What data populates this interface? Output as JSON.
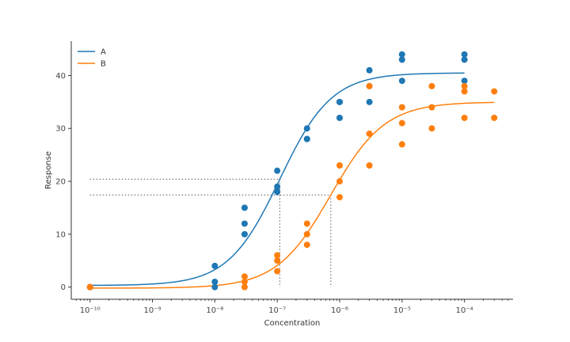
{
  "chart_data": {
    "type": "scatter",
    "title": "",
    "xlabel": "Concentration",
    "ylabel": "Response",
    "xscale": "log",
    "xlim": [
      5e-11,
      0.0006
    ],
    "ylim": [
      -2.3,
      46.5
    ],
    "grid": false,
    "legend_position": "top-left",
    "x_ticks": [
      1e-10,
      1e-09,
      1e-08,
      1e-07,
      1e-06,
      1e-05,
      0.0001
    ],
    "x_tick_labels": [
      "10⁻¹⁰",
      "10⁻⁹",
      "10⁻⁸",
      "10⁻⁷",
      "10⁻⁶",
      "10⁻⁵",
      "10⁻⁴"
    ],
    "y_ticks": [
      0,
      10,
      20,
      30,
      40
    ],
    "y_tick_labels": [
      "0",
      "10",
      "20",
      "30",
      "40"
    ],
    "series": [
      {
        "name": "A",
        "color": "#1f77b4",
        "points": [
          [
            1e-10,
            0
          ],
          [
            1e-10,
            0
          ],
          [
            1e-08,
            4
          ],
          [
            1e-08,
            1
          ],
          [
            1e-08,
            0
          ],
          [
            3e-08,
            15
          ],
          [
            3e-08,
            12
          ],
          [
            3e-08,
            10
          ],
          [
            1e-07,
            22
          ],
          [
            1e-07,
            19
          ],
          [
            1e-07,
            18
          ],
          [
            3e-07,
            30
          ],
          [
            3e-07,
            28
          ],
          [
            3e-07,
            28
          ],
          [
            1e-06,
            35
          ],
          [
            1e-06,
            35
          ],
          [
            1e-06,
            32
          ],
          [
            3e-06,
            41
          ],
          [
            3e-06,
            38
          ],
          [
            3e-06,
            35
          ],
          [
            1e-05,
            44
          ],
          [
            1e-05,
            43
          ],
          [
            1e-05,
            39
          ],
          [
            0.0001,
            44
          ],
          [
            0.0001,
            43
          ],
          [
            0.0001,
            39
          ]
        ],
        "fit": {
          "bottom": 0.3,
          "top": 40.5,
          "ec50": 1.1e-07,
          "hill": 1.05,
          "x_range": [
            1e-10,
            0.0001
          ]
        }
      },
      {
        "name": "B",
        "color": "#ff7f0e",
        "points": [
          [
            1e-10,
            0
          ],
          [
            1e-10,
            0
          ],
          [
            3e-08,
            2
          ],
          [
            3e-08,
            1
          ],
          [
            3e-08,
            0
          ],
          [
            1e-07,
            6
          ],
          [
            1e-07,
            5
          ],
          [
            1e-07,
            3
          ],
          [
            3e-07,
            12
          ],
          [
            3e-07,
            10
          ],
          [
            3e-07,
            8
          ],
          [
            1e-06,
            23
          ],
          [
            1e-06,
            20
          ],
          [
            1e-06,
            17
          ],
          [
            3e-06,
            38
          ],
          [
            3e-06,
            29
          ],
          [
            3e-06,
            23
          ],
          [
            1e-05,
            34
          ],
          [
            1e-05,
            31
          ],
          [
            1e-05,
            27
          ],
          [
            3e-05,
            38
          ],
          [
            3e-05,
            34
          ],
          [
            3e-05,
            30
          ],
          [
            0.0001,
            38
          ],
          [
            0.0001,
            37
          ],
          [
            0.0001,
            32
          ],
          [
            0.0003,
            37
          ],
          [
            0.0003,
            32
          ]
        ],
        "fit": {
          "bottom": -0.2,
          "top": 35.0,
          "ec50": 7.2e-07,
          "hill": 1.0,
          "x_range": [
            1e-10,
            0.0003
          ]
        }
      }
    ],
    "reference_lines": [
      {
        "x": 1.1e-07,
        "y": 20.4
      },
      {
        "x": 7.2e-07,
        "y": 17.4
      }
    ]
  }
}
